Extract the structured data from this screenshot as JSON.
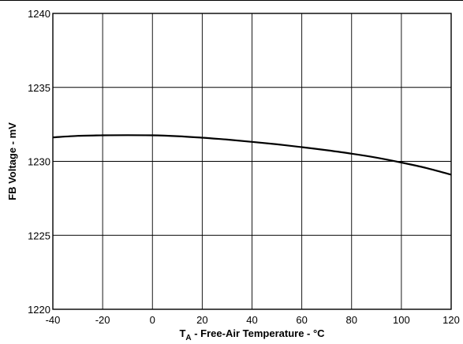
{
  "chart_data": {
    "type": "line",
    "title": "",
    "xlabel": {
      "main": "T",
      "subscript": "A",
      "rest": " - Free-Air Temperature - °C"
    },
    "ylabel": "FB Voltage - mV",
    "xlim": [
      -40,
      120
    ],
    "ylim": [
      1220,
      1240
    ],
    "x_ticks": [
      -40,
      -20,
      0,
      20,
      40,
      60,
      80,
      100,
      120
    ],
    "y_ticks": [
      1220,
      1225,
      1230,
      1235,
      1240
    ],
    "x_tick_labels": [
      "-40",
      "-20",
      "0",
      "20",
      "40",
      "60",
      "80",
      "100",
      "120"
    ],
    "y_tick_labels": [
      "1220",
      "1225",
      "1230",
      "1235",
      "1240"
    ],
    "grid": true,
    "legend": "none",
    "series": [
      {
        "x": [
          -40,
          -30,
          -20,
          -10,
          0,
          10,
          20,
          30,
          40,
          50,
          60,
          70,
          80,
          90,
          100,
          110,
          120
        ],
        "values": [
          1231.62,
          1231.72,
          1231.76,
          1231.77,
          1231.76,
          1231.7,
          1231.6,
          1231.47,
          1231.32,
          1231.15,
          1230.96,
          1230.75,
          1230.52,
          1230.25,
          1229.92,
          1229.55,
          1229.1
        ]
      }
    ],
    "line_color": "#000000"
  }
}
